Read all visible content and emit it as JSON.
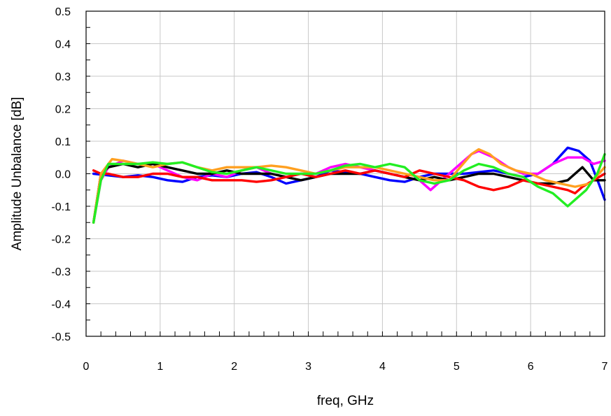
{
  "chart_data": {
    "type": "line",
    "title": "",
    "xlabel": "freq, GHz",
    "ylabel": "Amplitude Unbalance [dB]",
    "xlim": [
      0,
      7
    ],
    "ylim": [
      -0.5,
      0.5
    ],
    "xticks": [
      0,
      1,
      2,
      3,
      4,
      5,
      6,
      7
    ],
    "xtick_labels": [
      "0",
      "1",
      "2",
      "3",
      "4",
      "5",
      "6",
      "7"
    ],
    "yticks": [
      0.5,
      0.4,
      0.3,
      0.2,
      0.1,
      0.0,
      -0.1,
      -0.2,
      -0.3,
      -0.4,
      -0.5
    ],
    "ytick_labels": [
      "0.5",
      "0.4",
      "0.3",
      "0.2",
      "0.1",
      "0.0",
      "-0.1",
      "-0.2",
      "-0.3",
      "-0.4",
      "-0.5"
    ],
    "grid": true,
    "legend": "none",
    "series": [
      {
        "color": "#0000ff",
        "points": [
          [
            0.1,
            0.0
          ],
          [
            0.3,
            -0.005
          ],
          [
            0.5,
            -0.01
          ],
          [
            0.7,
            -0.005
          ],
          [
            0.9,
            -0.01
          ],
          [
            1.1,
            -0.02
          ],
          [
            1.3,
            -0.025
          ],
          [
            1.5,
            -0.01
          ],
          [
            1.7,
            -0.005
          ],
          [
            1.9,
            -0.01
          ],
          [
            2.1,
            0.0
          ],
          [
            2.3,
            0.005
          ],
          [
            2.5,
            -0.01
          ],
          [
            2.7,
            -0.03
          ],
          [
            2.9,
            -0.02
          ],
          [
            3.1,
            -0.01
          ],
          [
            3.3,
            0.01
          ],
          [
            3.5,
            0.005
          ],
          [
            3.7,
            0.0
          ],
          [
            3.9,
            -0.01
          ],
          [
            4.1,
            -0.02
          ],
          [
            4.3,
            -0.025
          ],
          [
            4.5,
            -0.01
          ],
          [
            4.7,
            0.0
          ],
          [
            4.9,
            0.0
          ],
          [
            5.1,
            0.0
          ],
          [
            5.3,
            0.005
          ],
          [
            5.5,
            0.01
          ],
          [
            5.7,
            0.0
          ],
          [
            5.9,
            -0.01
          ],
          [
            6.1,
            0.0
          ],
          [
            6.3,
            0.03
          ],
          [
            6.5,
            0.08
          ],
          [
            6.65,
            0.07
          ],
          [
            6.8,
            0.04
          ],
          [
            6.92,
            -0.03
          ],
          [
            7.0,
            -0.08
          ]
        ]
      },
      {
        "color": "#ff00ff",
        "points": [
          [
            0.1,
            -0.15
          ],
          [
            0.2,
            -0.02
          ],
          [
            0.3,
            0.02
          ],
          [
            0.5,
            0.04
          ],
          [
            0.7,
            0.03
          ],
          [
            0.9,
            0.03
          ],
          [
            1.1,
            0.01
          ],
          [
            1.3,
            -0.01
          ],
          [
            1.5,
            -0.02
          ],
          [
            1.7,
            0.0
          ],
          [
            1.9,
            -0.01
          ],
          [
            2.1,
            0.01
          ],
          [
            2.3,
            0.02
          ],
          [
            2.5,
            0.0
          ],
          [
            2.7,
            -0.01
          ],
          [
            2.9,
            0.0
          ],
          [
            3.1,
            0.0
          ],
          [
            3.3,
            0.02
          ],
          [
            3.5,
            0.03
          ],
          [
            3.7,
            0.02
          ],
          [
            3.9,
            0.01
          ],
          [
            4.1,
            0.0
          ],
          [
            4.3,
            -0.01
          ],
          [
            4.5,
            -0.02
          ],
          [
            4.65,
            -0.05
          ],
          [
            4.8,
            -0.02
          ],
          [
            5.0,
            0.02
          ],
          [
            5.2,
            0.06
          ],
          [
            5.3,
            0.07
          ],
          [
            5.5,
            0.05
          ],
          [
            5.7,
            0.02
          ],
          [
            5.9,
            0.0
          ],
          [
            6.1,
            0.0
          ],
          [
            6.3,
            0.03
          ],
          [
            6.5,
            0.05
          ],
          [
            6.7,
            0.05
          ],
          [
            6.85,
            0.03
          ],
          [
            7.0,
            0.04
          ]
        ]
      },
      {
        "color": "#000000",
        "points": [
          [
            0.1,
            -0.15
          ],
          [
            0.2,
            0.0
          ],
          [
            0.3,
            0.02
          ],
          [
            0.5,
            0.03
          ],
          [
            0.7,
            0.02
          ],
          [
            0.9,
            0.03
          ],
          [
            1.1,
            0.02
          ],
          [
            1.3,
            0.01
          ],
          [
            1.5,
            0.0
          ],
          [
            1.7,
            0.0
          ],
          [
            1.9,
            0.01
          ],
          [
            2.1,
            0.0
          ],
          [
            2.3,
            0.0
          ],
          [
            2.5,
            0.0
          ],
          [
            2.7,
            -0.01
          ],
          [
            2.9,
            -0.02
          ],
          [
            3.1,
            -0.01
          ],
          [
            3.3,
            0.0
          ],
          [
            3.5,
            0.0
          ],
          [
            3.7,
            0.0
          ],
          [
            3.9,
            0.01
          ],
          [
            4.1,
            0.0
          ],
          [
            4.3,
            -0.01
          ],
          [
            4.5,
            -0.02
          ],
          [
            4.7,
            -0.01
          ],
          [
            4.9,
            -0.02
          ],
          [
            5.1,
            -0.01
          ],
          [
            5.3,
            0.0
          ],
          [
            5.5,
            0.0
          ],
          [
            5.7,
            -0.01
          ],
          [
            5.9,
            -0.02
          ],
          [
            6.1,
            -0.03
          ],
          [
            6.3,
            -0.03
          ],
          [
            6.5,
            -0.02
          ],
          [
            6.7,
            0.02
          ],
          [
            6.85,
            -0.02
          ],
          [
            7.0,
            -0.02
          ]
        ]
      },
      {
        "color": "#ff0000",
        "points": [
          [
            0.1,
            0.01
          ],
          [
            0.2,
            0.0
          ],
          [
            0.3,
            0.0
          ],
          [
            0.5,
            -0.01
          ],
          [
            0.7,
            -0.01
          ],
          [
            0.9,
            0.0
          ],
          [
            1.1,
            0.0
          ],
          [
            1.3,
            -0.01
          ],
          [
            1.5,
            -0.01
          ],
          [
            1.7,
            -0.02
          ],
          [
            1.9,
            -0.02
          ],
          [
            2.1,
            -0.02
          ],
          [
            2.3,
            -0.025
          ],
          [
            2.5,
            -0.02
          ],
          [
            2.7,
            -0.01
          ],
          [
            2.9,
            0.0
          ],
          [
            3.1,
            -0.01
          ],
          [
            3.3,
            0.0
          ],
          [
            3.5,
            0.01
          ],
          [
            3.7,
            0.0
          ],
          [
            3.9,
            0.01
          ],
          [
            4.1,
            0.0
          ],
          [
            4.3,
            -0.01
          ],
          [
            4.5,
            0.01
          ],
          [
            4.7,
            0.0
          ],
          [
            4.9,
            -0.01
          ],
          [
            5.1,
            -0.02
          ],
          [
            5.3,
            -0.04
          ],
          [
            5.5,
            -0.05
          ],
          [
            5.7,
            -0.04
          ],
          [
            5.9,
            -0.02
          ],
          [
            6.1,
            -0.03
          ],
          [
            6.3,
            -0.04
          ],
          [
            6.5,
            -0.05
          ],
          [
            6.6,
            -0.06
          ],
          [
            6.7,
            -0.04
          ],
          [
            6.85,
            -0.02
          ],
          [
            7.0,
            0.0
          ]
        ]
      },
      {
        "color": "#ffa020",
        "points": [
          [
            0.1,
            -0.15
          ],
          [
            0.2,
            0.0
          ],
          [
            0.35,
            0.045
          ],
          [
            0.5,
            0.04
          ],
          [
            0.7,
            0.03
          ],
          [
            0.9,
            0.02
          ],
          [
            1.1,
            0.03
          ],
          [
            1.3,
            0.035
          ],
          [
            1.5,
            0.02
          ],
          [
            1.7,
            0.01
          ],
          [
            1.9,
            0.02
          ],
          [
            2.1,
            0.02
          ],
          [
            2.3,
            0.02
          ],
          [
            2.5,
            0.025
          ],
          [
            2.7,
            0.02
          ],
          [
            2.9,
            0.01
          ],
          [
            3.1,
            0.0
          ],
          [
            3.3,
            0.01
          ],
          [
            3.5,
            0.02
          ],
          [
            3.7,
            0.02
          ],
          [
            3.9,
            0.02
          ],
          [
            4.1,
            0.01
          ],
          [
            4.3,
            0.0
          ],
          [
            4.5,
            -0.01
          ],
          [
            4.7,
            -0.02
          ],
          [
            4.9,
            -0.02
          ],
          [
            5.05,
            0.02
          ],
          [
            5.2,
            0.06
          ],
          [
            5.3,
            0.075
          ],
          [
            5.45,
            0.06
          ],
          [
            5.6,
            0.03
          ],
          [
            5.8,
            0.01
          ],
          [
            6.0,
            0.0
          ],
          [
            6.2,
            -0.02
          ],
          [
            6.4,
            -0.03
          ],
          [
            6.6,
            -0.04
          ],
          [
            6.8,
            -0.03
          ],
          [
            7.0,
            0.02
          ]
        ]
      },
      {
        "color": "#22ee22",
        "points": [
          [
            0.1,
            -0.15
          ],
          [
            0.2,
            -0.02
          ],
          [
            0.3,
            0.03
          ],
          [
            0.5,
            0.03
          ],
          [
            0.7,
            0.03
          ],
          [
            0.9,
            0.035
          ],
          [
            1.1,
            0.03
          ],
          [
            1.3,
            0.035
          ],
          [
            1.5,
            0.02
          ],
          [
            1.7,
            0.005
          ],
          [
            1.9,
            0.0
          ],
          [
            2.1,
            0.01
          ],
          [
            2.3,
            0.02
          ],
          [
            2.5,
            0.01
          ],
          [
            2.7,
            0.0
          ],
          [
            2.9,
            0.0
          ],
          [
            3.1,
            0.0
          ],
          [
            3.3,
            0.01
          ],
          [
            3.5,
            0.025
          ],
          [
            3.7,
            0.03
          ],
          [
            3.9,
            0.02
          ],
          [
            4.1,
            0.03
          ],
          [
            4.3,
            0.02
          ],
          [
            4.5,
            -0.02
          ],
          [
            4.7,
            -0.03
          ],
          [
            4.9,
            -0.02
          ],
          [
            5.1,
            0.01
          ],
          [
            5.3,
            0.03
          ],
          [
            5.5,
            0.02
          ],
          [
            5.7,
            0.0
          ],
          [
            5.9,
            -0.01
          ],
          [
            6.1,
            -0.04
          ],
          [
            6.3,
            -0.06
          ],
          [
            6.5,
            -0.1
          ],
          [
            6.6,
            -0.08
          ],
          [
            6.75,
            -0.05
          ],
          [
            6.9,
            0.0
          ],
          [
            7.0,
            0.06
          ]
        ]
      }
    ]
  }
}
